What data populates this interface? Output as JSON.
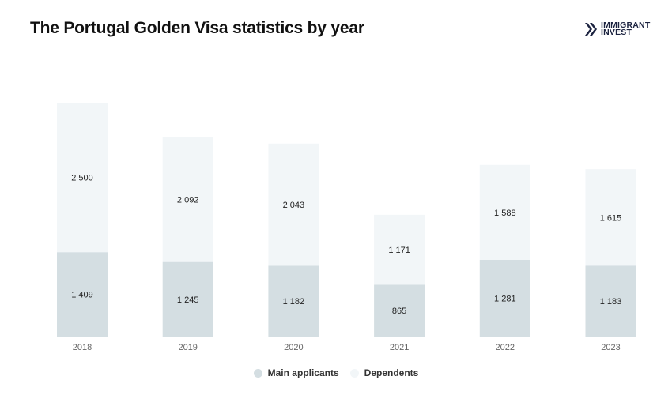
{
  "header": {
    "title": "The Portugal Golden Visa statistics by year",
    "brand_line1": "IMMIGRANT",
    "brand_line2": "INVEST"
  },
  "colors": {
    "main": "#d4dee2",
    "dependents": "#f2f6f8",
    "axis": "#d9dde0",
    "brand": "#1c2340"
  },
  "chart_data": {
    "type": "bar",
    "stacked": true,
    "categories": [
      "2018",
      "2019",
      "2020",
      "2021",
      "2022",
      "2023"
    ],
    "series": [
      {
        "name": "Main applicants",
        "values": [
          1409,
          1245,
          1182,
          865,
          1281,
          1183
        ],
        "labels": [
          "1 409",
          "1 245",
          "1 182",
          "865",
          "1 281",
          "1 183"
        ]
      },
      {
        "name": "Dependents",
        "values": [
          2500,
          2092,
          2043,
          1171,
          1588,
          1615
        ],
        "labels": [
          "2 500",
          "2 092",
          "2 043",
          "1 171",
          "1 588",
          "1 615"
        ]
      }
    ],
    "title": "The Portugal Golden Visa statistics by year",
    "legend_position": "bottom",
    "grid": false
  }
}
